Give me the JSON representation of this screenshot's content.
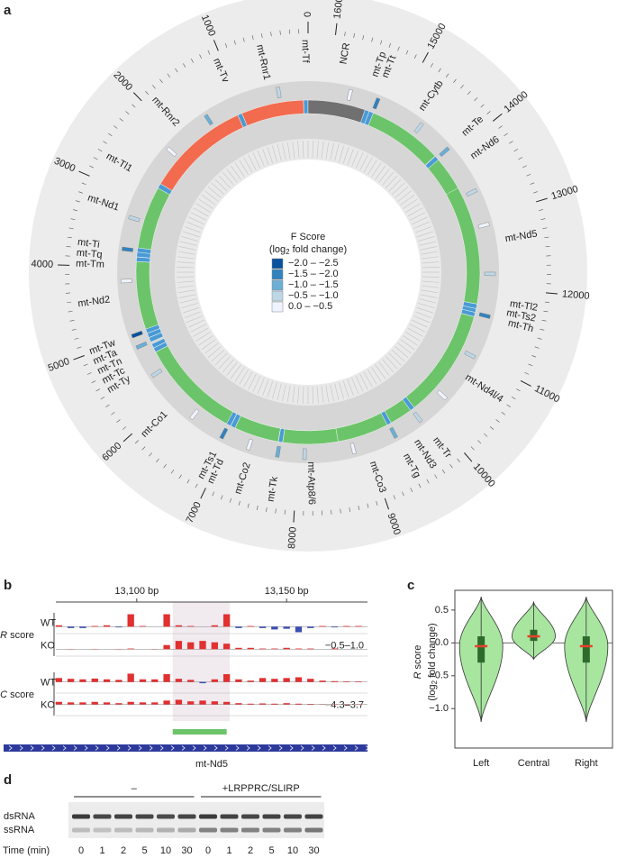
{
  "chart_data": [
    {
      "type": "circos",
      "panel": "a",
      "xlim": [
        0,
        16299
      ],
      "xticks": [
        0,
        1000,
        2000,
        3000,
        4000,
        5000,
        6000,
        7000,
        8000,
        9000,
        10000,
        11000,
        12000,
        13000,
        14000,
        15000,
        16000
      ],
      "features": [
        {
          "label": "mt-Tf",
          "start": 1,
          "end": 68,
          "color": "#4a9ad4"
        },
        {
          "label": "mt-Rnr1",
          "start": 70,
          "end": 1024,
          "color": "#f26b4f"
        },
        {
          "label": "mt-Tv",
          "start": 1025,
          "end": 1093,
          "color": "#4a9ad4"
        },
        {
          "label": "mt-Rnr2",
          "start": 1094,
          "end": 2675,
          "color": "#f26b4f"
        },
        {
          "label": "mt-Tl1",
          "start": 2676,
          "end": 2750,
          "color": "#4a9ad4"
        },
        {
          "label": "mt-Nd1",
          "start": 2751,
          "end": 3707,
          "color": "#6cc46a"
        },
        {
          "label": "mt-Ti",
          "start": 3706,
          "end": 3774,
          "color": "#4a9ad4"
        },
        {
          "label": "mt-Tq",
          "start": 3772,
          "end": 3842,
          "color": "#4a9ad4"
        },
        {
          "label": "mt-Tm",
          "start": 3845,
          "end": 3913,
          "color": "#4a9ad4"
        },
        {
          "label": "mt-Nd2",
          "start": 3914,
          "end": 4951,
          "color": "#6cc46a"
        },
        {
          "label": "mt-Tw",
          "start": 4950,
          "end": 5016,
          "color": "#4a9ad4"
        },
        {
          "label": "mt-Ta",
          "start": 5018,
          "end": 5086,
          "color": "#4a9ad4"
        },
        {
          "label": "mt-Tn",
          "start": 5089,
          "end": 5159,
          "color": "#4a9ad4"
        },
        {
          "label": "mt-Tc",
          "start": 5192,
          "end": 5257,
          "color": "#4a9ad4"
        },
        {
          "label": "mt-Ty",
          "start": 5260,
          "end": 5326,
          "color": "#4a9ad4"
        },
        {
          "label": "mt-Co1",
          "start": 5328,
          "end": 6872,
          "color": "#6cc46a"
        },
        {
          "label": "mt-Ts1",
          "start": 6870,
          "end": 6938,
          "color": "#4a9ad4"
        },
        {
          "label": "mt-Td",
          "start": 6942,
          "end": 7011,
          "color": "#4a9ad4"
        },
        {
          "label": "mt-Co2",
          "start": 7013,
          "end": 7696,
          "color": "#6cc46a"
        },
        {
          "label": "mt-Tk",
          "start": 7700,
          "end": 7764,
          "color": "#4a9ad4"
        },
        {
          "label": "mt-Atp8/6",
          "start": 7766,
          "end": 8607,
          "color": "#6cc46a"
        },
        {
          "label": "mt-Co3",
          "start": 8607,
          "end": 9390,
          "color": "#6cc46a"
        },
        {
          "label": "mt-Tg",
          "start": 9391,
          "end": 9458,
          "color": "#4a9ad4"
        },
        {
          "label": "mt-Nd3",
          "start": 9459,
          "end": 9806,
          "color": "#6cc46a"
        },
        {
          "label": "mt-Tr",
          "start": 9807,
          "end": 9875,
          "color": "#4a9ad4"
        },
        {
          "label": "mt-Nd4l/4",
          "start": 9877,
          "end": 11544,
          "color": "#6cc46a"
        },
        {
          "label": "mt-Th",
          "start": 11546,
          "end": 11612,
          "color": "#4a9ad4"
        },
        {
          "label": "mt-Ts2",
          "start": 11613,
          "end": 11671,
          "color": "#4a9ad4"
        },
        {
          "label": "mt-Tl2",
          "start": 11671,
          "end": 11741,
          "color": "#4a9ad4"
        },
        {
          "label": "mt-Nd5",
          "start": 11742,
          "end": 13565,
          "color": "#6cc46a"
        },
        {
          "label": "mt-Nd6",
          "start": 13552,
          "end": 14070,
          "color": "#6cc46a"
        },
        {
          "label": "mt-Te",
          "start": 14071,
          "end": 14139,
          "color": "#4a9ad4"
        },
        {
          "label": "mt-Cytb",
          "start": 14145,
          "end": 15288,
          "color": "#6cc46a"
        },
        {
          "label": "mt-Tt",
          "start": 15289,
          "end": 15355,
          "color": "#4a9ad4"
        },
        {
          "label": "mt-Tp",
          "start": 15356,
          "end": 15422,
          "color": "#4a9ad4"
        },
        {
          "label": "NCR",
          "start": 15423,
          "end": 16299,
          "color": "#707070"
        }
      ],
      "fscore_marks": [
        {
          "position": 420,
          "value": -0.8
        },
        {
          "position": 1500,
          "value": -1.2
        },
        {
          "position": 2200,
          "value": -0.3
        },
        {
          "position": 3300,
          "value": -0.6
        },
        {
          "position": 3750,
          "value": -1.8
        },
        {
          "position": 4200,
          "value": -0.4
        },
        {
          "position": 4980,
          "value": -2.2
        },
        {
          "position": 5150,
          "value": -1.3
        },
        {
          "position": 5600,
          "value": -0.7
        },
        {
          "position": 6400,
          "value": -0.3
        },
        {
          "position": 6900,
          "value": -1.6
        },
        {
          "position": 7300,
          "value": -0.4
        },
        {
          "position": 7720,
          "value": -1.1
        },
        {
          "position": 8100,
          "value": -0.6
        },
        {
          "position": 8800,
          "value": -0.3
        },
        {
          "position": 9420,
          "value": -1.4
        },
        {
          "position": 9830,
          "value": -0.9
        },
        {
          "position": 10300,
          "value": -0.4
        },
        {
          "position": 11000,
          "value": -0.7
        },
        {
          "position": 11600,
          "value": -1.7
        },
        {
          "position": 12200,
          "value": -0.5
        },
        {
          "position": 12900,
          "value": -0.3
        },
        {
          "position": 13400,
          "value": -0.8
        },
        {
          "position": 14100,
          "value": -1.3
        },
        {
          "position": 14600,
          "value": -0.6
        },
        {
          "position": 15300,
          "value": -1.9
        },
        {
          "position": 15700,
          "value": -0.4
        }
      ],
      "legend_title": "F Score",
      "legend_subtitle": [
        "(log",
        "2",
        "fold change)"
      ],
      "legend": [
        {
          "label": "−2.0 – −2.5",
          "range": [
            -2.0,
            -2.5
          ],
          "color": "#08519c"
        },
        {
          "label": "−1.5 – −2.0",
          "range": [
            -1.5,
            -2.0
          ],
          "color": "#3182bd"
        },
        {
          "label": "−1.0 – −1.5",
          "range": [
            -1.0,
            -1.5
          ],
          "color": "#6baed6"
        },
        {
          "label": "−0.5 – −1.0",
          "range": [
            -0.5,
            -1.0
          ],
          "color": "#bdd7e7"
        },
        {
          "label": "0.0 – −0.5",
          "range": [
            0.0,
            -0.5
          ],
          "color": "#eff3ff"
        }
      ]
    },
    {
      "type": "track",
      "panel": "b",
      "xlim": [
        13073,
        13177
      ],
      "xticks": [
        {
          "value": 13100,
          "label": "13,100 bp"
        },
        {
          "value": 13150,
          "label": "13,150 bp"
        }
      ],
      "highlight": [
        13112,
        13131
      ],
      "peak": [
        13112,
        13130
      ],
      "peak_color": "#6cc46a",
      "gene": "mt-Nd5",
      "gene_color": "#2d3a9c",
      "colors": {
        "positive": "#e03030",
        "negative": "#3a4fb0"
      },
      "x": [
        13074,
        13078,
        13082,
        13086,
        13090,
        13094,
        13098,
        13102,
        13106,
        13110,
        13114,
        13118,
        13122,
        13126,
        13130,
        13134,
        13138,
        13142,
        13146,
        13150,
        13154,
        13158,
        13162,
        13166,
        13170,
        13174
      ],
      "groups": [
        {
          "letter": "R",
          "label": "score",
          "range_label": "−0.5–1.0",
          "lim": [
            -0.5,
            1.0
          ],
          "rows": [
            {
              "name": "WT",
              "values": [
                0.1,
                -0.1,
                -0.1,
                0.05,
                0.1,
                -0.05,
                0.9,
                0.05,
                0,
                0.9,
                0.1,
                0.05,
                0,
                0.1,
                0.9,
                -0.1,
                0.05,
                -0.1,
                -0.2,
                -0.15,
                -0.4,
                -0.1,
                0.05,
                -0.05,
                0.05,
                0.05
              ]
            },
            {
              "name": "KO",
              "values": [
                0,
                0.02,
                0,
                0.02,
                0,
                0.02,
                0.05,
                0,
                0.02,
                0.3,
                0.6,
                0.5,
                0.6,
                0.5,
                0.4,
                0.1,
                0.1,
                0.05,
                0.05,
                0.1,
                0.05,
                0.05,
                0,
                0.05,
                0,
                0
              ]
            }
          ]
        },
        {
          "letter": "C",
          "label": "score",
          "range_label": "−4.3–3.7",
          "lim": [
            -4.3,
            3.7
          ],
          "rows": [
            {
              "name": "WT",
              "values": [
                1.5,
                1.2,
                1.0,
                1.3,
                1.0,
                0.8,
                3.2,
                1.0,
                1.0,
                3.0,
                1.2,
                0.8,
                -0.5,
                1.0,
                3.0,
                1.0,
                0.5,
                1.5,
                1.2,
                1.5,
                1.8,
                1.2,
                0.5,
                0.3,
                0.2,
                0.2
              ]
            },
            {
              "name": "KO",
              "values": [
                1.0,
                0.8,
                0.8,
                1.0,
                0.8,
                0.5,
                1.0,
                0.8,
                0.8,
                1.5,
                1.8,
                1.2,
                1.5,
                1.2,
                1.0,
                0.5,
                0.3,
                0.4,
                0.3,
                0.5,
                0.3,
                0.2,
                0.1,
                0.1,
                0.1,
                0.1
              ]
            }
          ]
        }
      ]
    },
    {
      "type": "violin",
      "panel": "c",
      "categories": [
        "Left",
        "Central",
        "Right"
      ],
      "ylabel": [
        "R",
        "score"
      ],
      "ylabel2": [
        "(log",
        "2",
        "fold change)"
      ],
      "ylim": [
        -1.6,
        0.8
      ],
      "yticks": [
        {
          "value": -1.0,
          "label": "−1.0"
        },
        {
          "value": -0.5,
          "label": "−0.5"
        },
        {
          "value": 0,
          "label": "0.0"
        },
        0.5
      ],
      "color": "#a8e6a0",
      "box_color": "#2d6b2d",
      "median_color": "#e8402a",
      "stats": [
        {
          "min": -1.2,
          "q1": -0.3,
          "median": -0.05,
          "q3": 0.1,
          "max": 0.7
        },
        {
          "min": -0.25,
          "q1": 0.03,
          "median": 0.1,
          "q3": 0.2,
          "max": 0.62
        },
        {
          "min": -1.2,
          "q1": -0.3,
          "median": -0.05,
          "q3": 0.1,
          "max": 0.7
        }
      ]
    },
    {
      "type": "gel",
      "panel": "d",
      "groups": [
        {
          "label": "–",
          "lanes": [
            0,
            5
          ]
        },
        {
          "label": "+LRPPRC/SLIRP",
          "lanes": [
            6,
            11
          ]
        }
      ],
      "xlabel": "Time (min)",
      "categories": [
        "0",
        "1",
        "2",
        "5",
        "10",
        "30",
        "0",
        "1",
        "2",
        "5",
        "10",
        "30"
      ],
      "bands": [
        {
          "name": "dsRNA",
          "values": [
            0.75,
            0.7,
            0.72,
            0.7,
            0.68,
            0.7,
            0.75,
            0.72,
            0.7,
            0.72,
            0.7,
            0.72
          ]
        },
        {
          "name": "ssRNA",
          "values": [
            0.2,
            0.18,
            0.2,
            0.22,
            0.25,
            0.28,
            0.45,
            0.45,
            0.45,
            0.45,
            0.45,
            0.5
          ]
        }
      ]
    }
  ]
}
